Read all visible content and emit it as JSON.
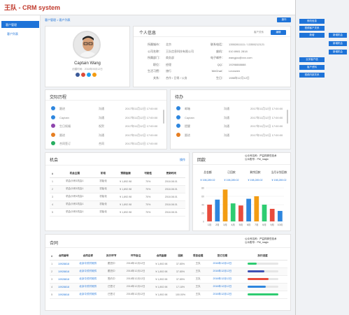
{
  "header": {
    "logo": "王队 - CRM system"
  },
  "sidebar": {
    "parent": "客户管理",
    "child": "客户列表"
  },
  "breadcrumb": "客户管理 > 客户列表",
  "top_button": "操作",
  "right_buttons": [
    "修改信息",
    "视频客户关系",
    "新增",
    "业务客户信",
    "客户资料",
    "视频内部关系"
  ],
  "right_buttons2": [
    "新增机会",
    "新增机会",
    "新增机会"
  ],
  "profile": {
    "name": "Captain Wang",
    "sub": "创建时间：2018年05月12日",
    "social_colors": [
      "#3b5998",
      "#dd4b39",
      "#1da1f2",
      "#f39c12"
    ]
  },
  "info": {
    "title": "个人信息",
    "action": "客户关系",
    "edit": "编辑",
    "left": [
      {
        "k": "所属城市：",
        "v": "北京"
      },
      {
        "k": "公司名称：",
        "v": "王队信息科技有限公司"
      },
      {
        "k": "所属部门：",
        "v": "商务部"
      },
      {
        "k": "职位：",
        "v": "经理"
      },
      {
        "k": "生活习惯：",
        "v": "旅行"
      },
      {
        "k": "关系：",
        "v": "合作 / 日常 / 公务"
      }
    ],
    "right": [
      {
        "k": "联系电话：",
        "v": "13552811111 / 13355212121"
      },
      {
        "k": "座机：",
        "v": "010 8981 2818"
      },
      {
        "k": "电子邮件：",
        "v": "wangjou@xxx.com"
      },
      {
        "k": "QQ：",
        "v": "19298888888"
      },
      {
        "k": "WeChat：",
        "v": "Leonwen"
      },
      {
        "k": "生日：",
        "v": "1988年12月12日"
      }
    ]
  },
  "history": {
    "title": "交际历程",
    "rows": [
      {
        "a": "跟进",
        "b": "沟通",
        "c": "2017年11月12日 17:00:00",
        "color": "#2e86de"
      },
      {
        "a": "Captain",
        "b": "沟通",
        "c": "2017年11月12日 17:00:00",
        "color": "#2e86de"
      },
      {
        "a": "生日祝福",
        "b": "祝贺",
        "c": "2017年11月12日 17:00:00",
        "color": "#8e44ad"
      },
      {
        "a": "跟进",
        "b": "沟通",
        "c": "2017年11月12日 17:00:00",
        "color": "#e67e22"
      },
      {
        "a": "合同签订",
        "b": "合同",
        "c": "2017年11月12日 17:00:00",
        "color": "#27ae60"
      }
    ]
  },
  "todo": {
    "title": "待办",
    "rows": [
      {
        "a": "邮箱",
        "b": "沟通",
        "c": "2017年11月12日 17:00:00",
        "color": "#2e86de"
      },
      {
        "a": "Captain",
        "b": "沟通",
        "c": "2017年11月12日 17:00:00",
        "color": "#2e86de"
      },
      {
        "a": "提醒",
        "b": "沟通",
        "c": "2017年11月12日 17:00:00",
        "color": "#2e86de"
      },
      {
        "a": "跟进",
        "b": "沟通",
        "c": "2017年11月12日 17:00:00",
        "color": "#e67e22"
      }
    ]
  },
  "opps": {
    "title": "机会",
    "action": "操作",
    "headers": [
      "#",
      "机会主题",
      "阶段",
      "预期金额",
      "可能性",
      "更新时间"
    ],
    "rows": [
      [
        "1",
        "机会示例1机会1",
        "初始化",
        "¥ 1,892.98",
        "70%",
        "2018.08.01"
      ],
      [
        "2",
        "机会示例1机会1",
        "初始化",
        "¥ 1,892.98",
        "70%",
        "2018.08.01"
      ],
      [
        "3",
        "机会示例1机会1",
        "初始化",
        "¥ 1,892.98",
        "70%",
        "2018.08.01"
      ],
      [
        "4",
        "机会示例1机会1",
        "初始化",
        "¥ 1,892.98",
        "70%",
        "2018.08.01"
      ],
      [
        "5",
        "机会示例1机会1",
        "初始化",
        "¥ 1,892.98",
        "70%",
        "2018.08.01"
      ]
    ]
  },
  "report": {
    "title": "回款",
    "corner": [
      "公众号名称：严益祥那些技术",
      "公众账号：PM_magic"
    ],
    "stats": [
      {
        "label": "总金额",
        "value": "¥ 198,289.02"
      },
      {
        "label": "已回款",
        "value": "¥ 198,289.02"
      },
      {
        "label": "剩余回款",
        "value": "¥ 198,289.02"
      },
      {
        "label": "当月计划回款",
        "value": "¥ 198,289.02"
      }
    ]
  },
  "chart_data": {
    "type": "bar",
    "categories": [
      "1月",
      "2月",
      "3月",
      "4月",
      "5月",
      "6月",
      "7月",
      "8月",
      "9月",
      "10月"
    ],
    "values": [
      40,
      52,
      76,
      43,
      38,
      54,
      60,
      40,
      30,
      25
    ],
    "colors": [
      "#e84c3d",
      "#2e86de",
      "#f39c12",
      "#2ecc71",
      "#e84c3d",
      "#2e86de",
      "#f39c12",
      "#2ecc71",
      "#e84c3d",
      "#2e86de"
    ],
    "ylim": [
      0,
      80
    ],
    "yticks": [
      "0",
      "20",
      "40",
      "60",
      "80"
    ]
  },
  "contracts": {
    "title": "合同",
    "corner": [
      "公众号名称：严益祥那些技术",
      "公众账号：PM_magic"
    ],
    "headers": [
      "#",
      "合同编号",
      "合同名称",
      "执行环节",
      "环节备注",
      "合同金额",
      "回款",
      "项目经理",
      "签订日期",
      "执行进度"
    ],
    "rows": [
      {
        "c": [
          "1",
          "10928818",
          "北京中关村软件",
          "跟进中",
          "2018年12月12日",
          "¥ 1,892.98",
          "37.85%",
          "王队",
          "2018年12月12日"
        ],
        "p": 0.3,
        "pc": "#2ecc71"
      },
      {
        "c": [
          "2",
          "10928818",
          "北京中关村软件",
          "跟进中",
          "2018年12月12日",
          "¥ 1,892.98",
          "37.85%",
          "王队",
          "2018年12月12日"
        ],
        "p": 0.55,
        "pc": "#3f51b5"
      },
      {
        "c": [
          "3",
          "10928818",
          "北京中关村软件",
          "签约中",
          "2018年12月12日",
          "¥ 1,892.98",
          "37.85%",
          "王队",
          "2018年12月12日"
        ],
        "p": 0.7,
        "pc": "#e84c3d"
      },
      {
        "c": [
          "4",
          "10928818",
          "北京中关村软件",
          "已签订",
          "2018年12月12日",
          "¥ 1,892.98",
          "17.18%",
          "王队",
          "2018年12月12日"
        ],
        "p": 0.6,
        "pc": "#2e86de"
      },
      {
        "c": [
          "5",
          "10928818",
          "北京中关村软件",
          "已签订",
          "2018年12月12日",
          "¥ 1,892.98",
          "100.00%",
          "王队",
          "2018年12月12日"
        ],
        "p": 1.0,
        "pc": "#2ecc71"
      }
    ]
  }
}
